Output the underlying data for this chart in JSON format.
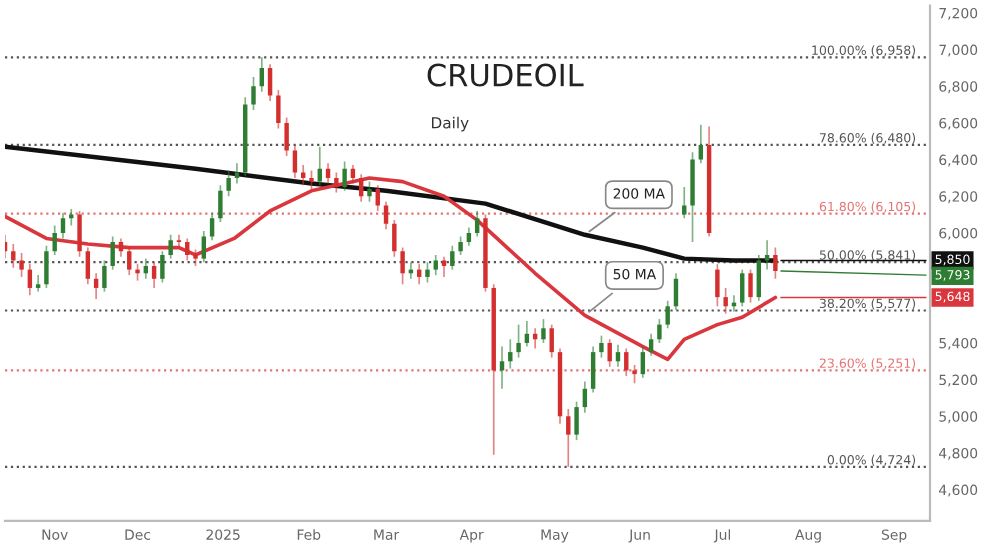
{
  "chart_data": {
    "type": "candlestick",
    "title": "CRUDEOIL",
    "subtitle": "Daily",
    "x": [
      "2024-10-14",
      "2024-10-17",
      "2024-10-20",
      "2024-10-23",
      "2024-10-26",
      "2024-10-29",
      "2024-11-01",
      "2024-11-04",
      "2024-11-07",
      "2024-11-10",
      "2024-11-13",
      "2024-11-16",
      "2024-11-19",
      "2024-11-22",
      "2024-11-25",
      "2024-11-28",
      "2024-12-01",
      "2024-12-04",
      "2024-12-07",
      "2024-12-10",
      "2024-12-13",
      "2024-12-16",
      "2024-12-19",
      "2024-12-22",
      "2024-12-25",
      "2024-12-28",
      "2024-12-31",
      "2025-01-03",
      "2025-01-06",
      "2025-01-09",
      "2025-01-12",
      "2025-01-15",
      "2025-01-18",
      "2025-01-21",
      "2025-01-24",
      "2025-01-27",
      "2025-01-30",
      "2025-02-02",
      "2025-02-05",
      "2025-02-08",
      "2025-02-11",
      "2025-02-14",
      "2025-02-17",
      "2025-02-20",
      "2025-02-23",
      "2025-02-26",
      "2025-03-01",
      "2025-03-04",
      "2025-03-07",
      "2025-03-10",
      "2025-03-13",
      "2025-03-16",
      "2025-03-19",
      "2025-03-22",
      "2025-03-25",
      "2025-03-28",
      "2025-03-31",
      "2025-04-03",
      "2025-04-06",
      "2025-04-09",
      "2025-04-12",
      "2025-04-15",
      "2025-04-18",
      "2025-04-21",
      "2025-04-24",
      "2025-04-27",
      "2025-04-30",
      "2025-05-03",
      "2025-05-06",
      "2025-05-09",
      "2025-05-12",
      "2025-05-15",
      "2025-05-18",
      "2025-05-21",
      "2025-05-24",
      "2025-05-27",
      "2025-05-30",
      "2025-06-02",
      "2025-06-05",
      "2025-06-08",
      "2025-06-11",
      "2025-06-14",
      "2025-06-17",
      "2025-06-20",
      "2025-06-23",
      "2025-06-26",
      "2025-06-29",
      "2025-07-02",
      "2025-07-05",
      "2025-07-08",
      "2025-07-11",
      "2025-07-14",
      "2025-07-17",
      "2025-07-20"
    ],
    "ohlc": [
      [
        5950,
        5990,
        5860,
        5900
      ],
      [
        5900,
        5940,
        5810,
        5850
      ],
      [
        5850,
        5890,
        5760,
        5800
      ],
      [
        5800,
        5830,
        5660,
        5700
      ],
      [
        5700,
        5770,
        5680,
        5720
      ],
      [
        5720,
        5930,
        5700,
        5900
      ],
      [
        5900,
        6040,
        5880,
        6000
      ],
      [
        6000,
        6110,
        5970,
        6080
      ],
      [
        6080,
        6130,
        6040,
        6100
      ],
      [
        6100,
        6120,
        5870,
        5900
      ],
      [
        5900,
        5920,
        5720,
        5750
      ],
      [
        5750,
        5780,
        5640,
        5700
      ],
      [
        5700,
        5850,
        5680,
        5820
      ],
      [
        5820,
        5980,
        5800,
        5950
      ],
      [
        5950,
        5970,
        5870,
        5900
      ],
      [
        5900,
        5920,
        5770,
        5800
      ],
      [
        5800,
        5830,
        5740,
        5780
      ],
      [
        5780,
        5860,
        5750,
        5820
      ],
      [
        5820,
        5840,
        5700,
        5750
      ],
      [
        5750,
        5900,
        5730,
        5880
      ],
      [
        5880,
        5990,
        5860,
        5960
      ],
      [
        5960,
        5990,
        5920,
        5950
      ],
      [
        5950,
        5970,
        5850,
        5880
      ],
      [
        5880,
        5910,
        5820,
        5860
      ],
      [
        5860,
        6010,
        5840,
        5980
      ],
      [
        5980,
        6110,
        5960,
        6080
      ],
      [
        6080,
        6260,
        6060,
        6230
      ],
      [
        6230,
        6340,
        6200,
        6300
      ],
      [
        6300,
        6380,
        6270,
        6330
      ],
      [
        6330,
        6740,
        6310,
        6700
      ],
      [
        6700,
        6850,
        6670,
        6800
      ],
      [
        6800,
        6958,
        6770,
        6900
      ],
      [
        6900,
        6920,
        6720,
        6750
      ],
      [
        6750,
        6780,
        6570,
        6600
      ],
      [
        6600,
        6630,
        6420,
        6450
      ],
      [
        6450,
        6480,
        6300,
        6330
      ],
      [
        6330,
        6370,
        6260,
        6300
      ],
      [
        6300,
        6340,
        6240,
        6280
      ],
      [
        6280,
        6470,
        6260,
        6350
      ],
      [
        6350,
        6380,
        6270,
        6300
      ],
      [
        6300,
        6330,
        6220,
        6250
      ],
      [
        6250,
        6390,
        6230,
        6350
      ],
      [
        6350,
        6370,
        6270,
        6300
      ],
      [
        6300,
        6320,
        6170,
        6200
      ],
      [
        6200,
        6280,
        6170,
        6240
      ],
      [
        6240,
        6260,
        6120,
        6150
      ],
      [
        6150,
        6170,
        6020,
        6050
      ],
      [
        6050,
        6070,
        5870,
        5900
      ],
      [
        5900,
        5920,
        5720,
        5780
      ],
      [
        5780,
        5840,
        5750,
        5800
      ],
      [
        5800,
        5830,
        5720,
        5760
      ],
      [
        5760,
        5840,
        5730,
        5800
      ],
      [
        5800,
        5880,
        5770,
        5850
      ],
      [
        5850,
        5870,
        5760,
        5820
      ],
      [
        5820,
        5930,
        5800,
        5900
      ],
      [
        5900,
        5980,
        5880,
        5950
      ],
      [
        5950,
        6030,
        5930,
        6000
      ],
      [
        6000,
        6120,
        5980,
        6080
      ],
      [
        6080,
        6100,
        5680,
        5700
      ],
      [
        5700,
        5720,
        4790,
        5250
      ],
      [
        5250,
        5380,
        5150,
        5300
      ],
      [
        5300,
        5420,
        5260,
        5350
      ],
      [
        5350,
        5500,
        5320,
        5400
      ],
      [
        5400,
        5520,
        5380,
        5450
      ],
      [
        5450,
        5480,
        5370,
        5420
      ],
      [
        5420,
        5530,
        5400,
        5480
      ],
      [
        5480,
        5500,
        5320,
        5350
      ],
      [
        5350,
        5370,
        4960,
        5000
      ],
      [
        5000,
        5040,
        4724,
        4900
      ],
      [
        4900,
        5080,
        4870,
        5050
      ],
      [
        5050,
        5190,
        5020,
        5150
      ],
      [
        5150,
        5380,
        5130,
        5350
      ],
      [
        5350,
        5440,
        5320,
        5400
      ],
      [
        5400,
        5420,
        5270,
        5300
      ],
      [
        5300,
        5390,
        5270,
        5350
      ],
      [
        5350,
        5370,
        5220,
        5250
      ],
      [
        5250,
        5280,
        5180,
        5230
      ],
      [
        5230,
        5380,
        5210,
        5350
      ],
      [
        5350,
        5450,
        5330,
        5420
      ],
      [
        5420,
        5530,
        5400,
        5500
      ],
      [
        5500,
        5630,
        5480,
        5600
      ],
      [
        5600,
        5780,
        5580,
        5750
      ],
      [
        6100,
        6250,
        6080,
        6150
      ],
      [
        6150,
        6440,
        5950,
        6400
      ],
      [
        6400,
        6590,
        6380,
        6480
      ],
      [
        6480,
        6580,
        5980,
        6000
      ],
      [
        5800,
        5830,
        5600,
        5650
      ],
      [
        5650,
        5700,
        5560,
        5600
      ],
      [
        5600,
        5660,
        5570,
        5620
      ],
      [
        5620,
        5800,
        5600,
        5780
      ],
      [
        5780,
        5800,
        5620,
        5650
      ],
      [
        5650,
        5880,
        5630,
        5850
      ],
      [
        5850,
        5960,
        5800,
        5880
      ],
      [
        5880,
        5920,
        5750,
        5793
      ]
    ],
    "series": [
      {
        "type": "line",
        "color": "#111111",
        "x": [
          "2024-10-14",
          "2024-12-22",
          "2025-02-02",
          "2025-03-01",
          "2025-04-06",
          "2025-05-12",
          "2025-06-02",
          "2025-06-17",
          "2025-07-05",
          "2025-07-20"
        ],
        "values": [
          6470,
          6350,
          6270,
          6230,
          6160,
          5990,
          5920,
          5860,
          5850,
          5850
        ]
      },
      {
        "type": "line",
        "color": "#d9363e",
        "x": [
          "2024-10-14",
          "2024-10-29",
          "2024-11-13",
          "2024-11-28",
          "2024-12-16",
          "2024-12-22",
          "2025-01-05",
          "2025-01-18",
          "2025-02-02",
          "2025-02-23",
          "2025-03-07",
          "2025-03-22",
          "2025-04-03",
          "2025-04-24",
          "2025-05-12",
          "2025-06-02",
          "2025-06-11",
          "2025-06-17",
          "2025-06-29",
          "2025-07-08",
          "2025-07-20"
        ],
        "values": [
          6090,
          5970,
          5940,
          5920,
          5920,
          5880,
          5970,
          6120,
          6230,
          6300,
          6280,
          6200,
          6070,
          5780,
          5550,
          5380,
          5310,
          5420,
          5500,
          5540,
          5648
        ]
      }
    ],
    "ylim": [
      4430,
      7240
    ],
    "yticks": [
      {
        "value": 4600,
        "label": "4,600"
      },
      {
        "value": 4800,
        "label": "4,800"
      },
      {
        "value": 5000,
        "label": "5,000"
      },
      {
        "value": 5200,
        "label": "5,200"
      },
      {
        "value": 5400,
        "label": "5,400"
      },
      {
        "value": 6000,
        "label": "6,000"
      },
      {
        "value": 6200,
        "label": "6,200"
      },
      {
        "value": 6400,
        "label": "6,400"
      },
      {
        "value": 6600,
        "label": "6,600"
      },
      {
        "value": 6800,
        "label": "6,800"
      },
      {
        "value": 7000,
        "label": "7,000"
      },
      {
        "value": 7200,
        "label": "7,200"
      }
    ],
    "xlim": [
      "2024-10-14",
      "2025-09-14"
    ],
    "xticks": [
      {
        "value": "2024-11-01",
        "label": "Nov"
      },
      {
        "value": "2024-12-01",
        "label": "Dec"
      },
      {
        "value": "2025-01-01",
        "label": "2025"
      },
      {
        "value": "2025-02-01",
        "label": "Feb"
      },
      {
        "value": "2025-03-01",
        "label": "Mar"
      },
      {
        "value": "2025-04-01",
        "label": "Apr"
      },
      {
        "value": "2025-05-01",
        "label": "May"
      },
      {
        "value": "2025-06-01",
        "label": "Jun"
      },
      {
        "value": "2025-07-01",
        "label": "Jul"
      },
      {
        "value": "2025-08-01",
        "label": "Aug"
      },
      {
        "value": "2025-09-01",
        "label": "Sep"
      }
    ],
    "ref_lines": [
      {
        "axis": "y",
        "value": 6958,
        "label": "100.00% (6,958)",
        "color": "#555555",
        "line_style": "dotted"
      },
      {
        "axis": "y",
        "value": 6480,
        "label": "78.60% (6,480)",
        "color": "#555555",
        "line_style": "dotted"
      },
      {
        "axis": "y",
        "value": 6105,
        "label": "61.80% (6,105)",
        "color": "#e57373",
        "line_style": "dotted"
      },
      {
        "axis": "y",
        "value": 5841,
        "label": "50.00% (5,841)",
        "color": "#555555",
        "line_style": "dotted"
      },
      {
        "axis": "y",
        "value": 5577,
        "label": "38.20% (5,577)",
        "color": "#555555",
        "line_style": "dotted"
      },
      {
        "axis": "y",
        "value": 5251,
        "label": "23.60% (5,251)",
        "color": "#e57373",
        "line_style": "dotted"
      },
      {
        "axis": "y",
        "value": 4724,
        "label": "0.00% (4,724)",
        "color": "#555555",
        "line_style": "dotted"
      }
    ],
    "annotations": [
      {
        "text": "200 MA",
        "x": "2025-05-12",
        "y": 5990
      },
      {
        "text": "50 MA",
        "x": "2025-05-12",
        "y": 5550
      },
      {
        "text": "5,850",
        "x": "2025-07-20",
        "y": 5850
      },
      {
        "text": "5,793",
        "x": "2025-07-20",
        "y": 5793
      },
      {
        "text": "5,648",
        "x": "2025-07-20",
        "y": 5648
      }
    ],
    "grid": false,
    "legend": false
  }
}
